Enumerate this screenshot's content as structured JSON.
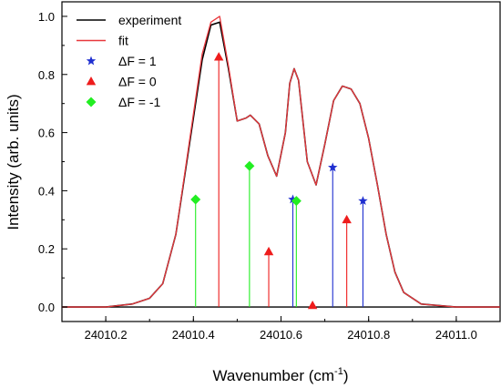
{
  "chart_data": {
    "type": "line",
    "title": "",
    "xlabel": "Wavenumber (cm",
    "xlabel_sup": "-1",
    "xlabel_close": ")",
    "ylabel": "Intensity (arb. units)",
    "xlim": [
      24010.1,
      24011.1
    ],
    "ylim": [
      -0.05,
      1.05
    ],
    "xticks": [
      24010.2,
      24010.4,
      24010.6,
      24010.8,
      24011.0
    ],
    "xtick_labels": [
      "24010.2",
      "24010.4",
      "24010.6",
      "24010.8",
      "24011.0"
    ],
    "yticks": [
      0.0,
      0.2,
      0.4,
      0.6,
      0.8,
      1.0
    ],
    "ytick_labels": [
      "0.0",
      "0.2",
      "0.4",
      "0.6",
      "0.8",
      "1.0"
    ],
    "grid": false,
    "legend_position": "top-left",
    "baseline": 0.0,
    "series": [
      {
        "name": "experiment",
        "color": "#000000",
        "kind": "line",
        "x": [
          24010.1,
          24010.2,
          24010.26,
          24010.3,
          24010.33,
          24010.36,
          24010.39,
          24010.42,
          24010.44,
          24010.46,
          24010.48,
          24010.5,
          24010.52,
          24010.53,
          24010.55,
          24010.57,
          24010.59,
          24010.61,
          24010.62,
          24010.63,
          24010.64,
          24010.66,
          24010.68,
          24010.7,
          24010.72,
          24010.74,
          24010.76,
          24010.78,
          24010.8,
          24010.82,
          24010.84,
          24010.86,
          24010.88,
          24010.92,
          24011.0,
          24011.1
        ],
        "y": [
          0.0,
          0.0,
          0.01,
          0.03,
          0.08,
          0.25,
          0.55,
          0.85,
          0.97,
          0.98,
          0.82,
          0.64,
          0.65,
          0.66,
          0.63,
          0.52,
          0.45,
          0.6,
          0.77,
          0.82,
          0.78,
          0.5,
          0.42,
          0.56,
          0.71,
          0.76,
          0.75,
          0.7,
          0.58,
          0.42,
          0.25,
          0.12,
          0.05,
          0.01,
          0.0,
          0.0
        ]
      },
      {
        "name": "fit",
        "color": "#e8383d",
        "kind": "line",
        "x": [
          24010.1,
          24010.2,
          24010.26,
          24010.3,
          24010.33,
          24010.36,
          24010.39,
          24010.42,
          24010.44,
          24010.46,
          24010.48,
          24010.5,
          24010.52,
          24010.53,
          24010.55,
          24010.57,
          24010.59,
          24010.61,
          24010.62,
          24010.63,
          24010.64,
          24010.66,
          24010.68,
          24010.7,
          24010.72,
          24010.74,
          24010.76,
          24010.78,
          24010.8,
          24010.82,
          24010.84,
          24010.86,
          24010.88,
          24010.92,
          24011.0,
          24011.1
        ],
        "y": [
          0.0,
          0.0,
          0.01,
          0.03,
          0.08,
          0.25,
          0.56,
          0.87,
          0.98,
          1.0,
          0.83,
          0.64,
          0.65,
          0.66,
          0.63,
          0.52,
          0.45,
          0.6,
          0.77,
          0.82,
          0.78,
          0.5,
          0.42,
          0.56,
          0.71,
          0.76,
          0.75,
          0.7,
          0.58,
          0.42,
          0.25,
          0.12,
          0.05,
          0.01,
          0.0,
          0.0
        ]
      },
      {
        "name": "ΔF = 1",
        "color": "#1f2fd0",
        "kind": "stem",
        "marker": "star",
        "x": [
          24010.627,
          24010.718,
          24010.787
        ],
        "y": [
          0.37,
          0.48,
          0.365
        ]
      },
      {
        "name": "ΔF = 0",
        "color": "#ee1c1c",
        "kind": "stem",
        "marker": "triangle",
        "x": [
          24010.458,
          24010.572,
          24010.672,
          24010.75
        ],
        "y": [
          0.86,
          0.19,
          0.005,
          0.3
        ]
      },
      {
        "name": "ΔF = -1",
        "color": "#22ee22",
        "kind": "stem",
        "marker": "diamond",
        "x": [
          24010.405,
          24010.528,
          24010.635
        ],
        "y": [
          0.37,
          0.485,
          0.365
        ]
      }
    ]
  }
}
